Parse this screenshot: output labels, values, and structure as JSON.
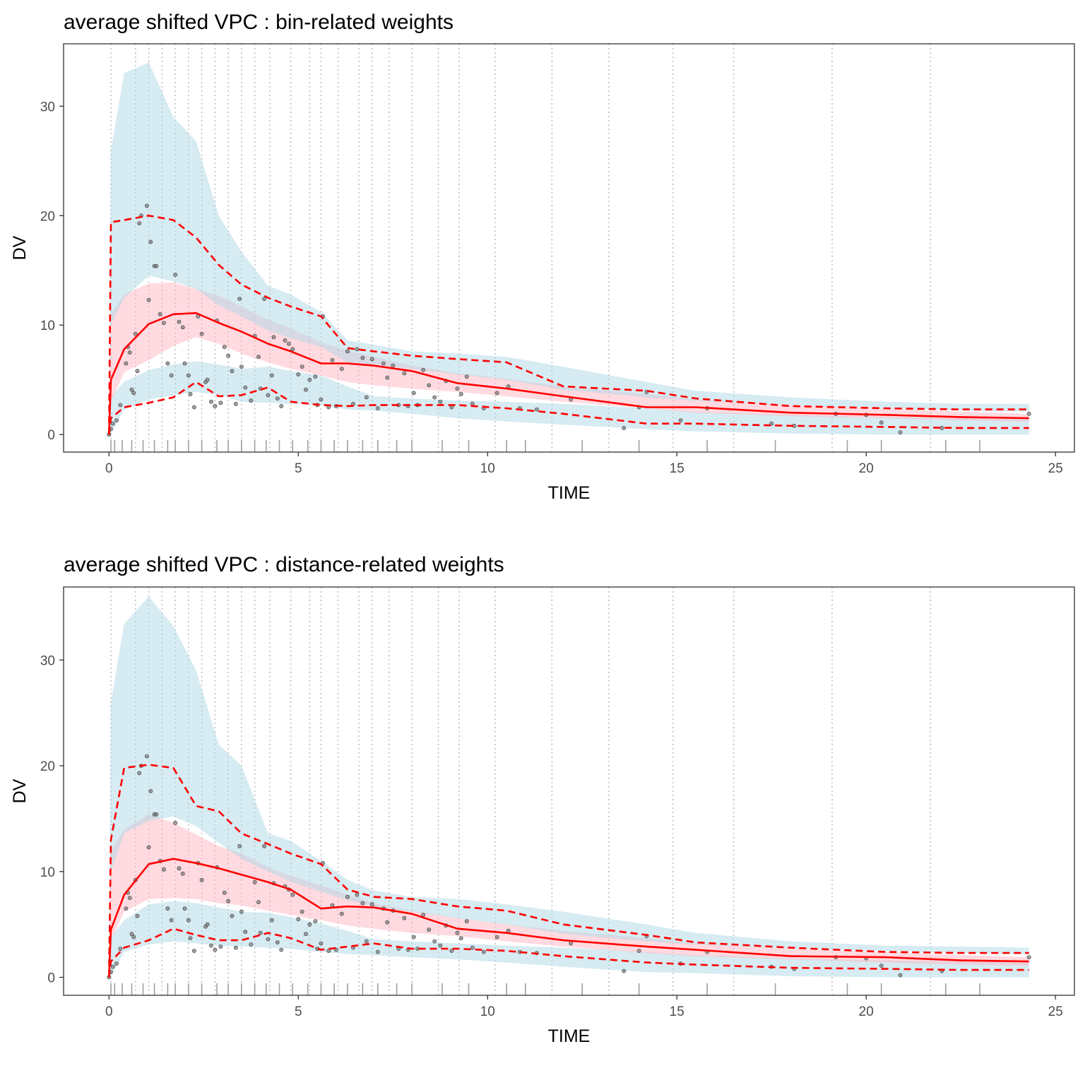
{
  "chart_data": [
    {
      "type": "line",
      "title": "average shifted VPC : bin-related weights",
      "xlabel": "TIME",
      "ylabel": "DV",
      "xlim": [
        -1.2,
        25.5
      ],
      "ylim": [
        -1.6,
        35.7
      ],
      "xticks": [
        0,
        5,
        10,
        15,
        20,
        25
      ],
      "yticks": [
        0,
        10,
        20,
        30
      ],
      "grid": false,
      "legend": "none",
      "colors": {
        "pi_band": "#add8e6",
        "median_band": "#ffb6c1",
        "line": "#ff0000",
        "points": "#808080",
        "bin_lines": "#bdbdbd",
        "rug": "#a0a0a0"
      },
      "bin_boundaries": [
        0.05,
        0.7,
        1.05,
        1.4,
        1.75,
        2.1,
        2.45,
        2.8,
        3.15,
        3.5,
        3.85,
        4.25,
        4.8,
        5.3,
        5.6,
        6.05,
        6.6,
        6.95,
        7.4,
        8.0,
        8.7,
        9.25,
        10.2,
        11.7,
        13.2,
        14.9,
        16.5,
        19.1,
        21.7
      ],
      "rug_x": [
        0.05,
        0.15,
        0.35,
        0.6,
        0.9,
        1.2,
        1.55,
        1.75,
        2.1,
        2.45,
        2.85,
        3.15,
        3.5,
        3.85,
        4.15,
        4.5,
        4.85,
        5.25,
        5.6,
        5.95,
        6.3,
        6.7,
        7.1,
        7.6,
        8.0,
        8.8,
        9.5,
        10.5,
        11.0,
        12.5,
        14.0,
        15.8,
        17.6,
        19.5,
        20.4,
        22.1,
        23.0
      ],
      "x": [
        0,
        0.05,
        0.4,
        1.05,
        1.7,
        2.3,
        2.9,
        3.5,
        4.2,
        4.8,
        5.6,
        6.3,
        7.0,
        8.0,
        9.2,
        10.5,
        12.0,
        14.2,
        15.5,
        18.0,
        20.5,
        22.5,
        24.3
      ],
      "series": [
        {
          "name": "",
          "role": "observed_p05",
          "values": [
            0,
            1.5,
            2.5,
            2.9,
            3.4,
            4.8,
            3.5,
            3.6,
            4.3,
            3.0,
            2.7,
            2.6,
            2.7,
            2.7,
            2.7,
            2.4,
            1.9,
            1.0,
            1.0,
            0.8,
            0.7,
            0.6,
            0.6
          ]
        },
        {
          "name": "",
          "role": "observed_median",
          "values": [
            0,
            5.0,
            7.8,
            10.1,
            11.0,
            11.1,
            10.2,
            9.4,
            8.3,
            7.6,
            6.5,
            6.5,
            6.3,
            5.8,
            4.7,
            4.2,
            3.5,
            2.5,
            2.5,
            2.0,
            1.8,
            1.6,
            1.5
          ]
        },
        {
          "name": "",
          "role": "observed_p95",
          "values": [
            0,
            19.4,
            19.6,
            20.0,
            19.6,
            18.0,
            15.5,
            13.7,
            12.5,
            11.7,
            10.8,
            7.9,
            7.6,
            7.2,
            6.9,
            6.6,
            4.4,
            4.0,
            3.3,
            2.6,
            2.4,
            2.3,
            2.3
          ]
        }
      ],
      "bands": [
        {
          "role": "pi_p05_band",
          "lower": [
            0,
            0.1,
            2.3,
            3.2,
            3.6,
            3.9,
            3.6,
            3.0,
            2.9,
            2.8,
            2.7,
            2.3,
            2.2,
            1.9,
            1.5,
            1.2,
            0.9,
            0.5,
            0.3,
            0.1,
            0,
            0,
            0
          ],
          "upper": [
            0,
            3.5,
            4.8,
            5.9,
            6.4,
            6.7,
            6.4,
            6.0,
            6.2,
            5.8,
            5.4,
            4.4,
            3.5,
            3.3,
            3.1,
            3.0,
            2.8,
            2.4,
            2.1,
            1.8,
            1.6,
            1.5,
            1.5
          ]
        },
        {
          "role": "median_band",
          "lower": [
            0,
            3.0,
            5.7,
            6.8,
            8.1,
            8.9,
            8.3,
            7.4,
            6.6,
            6.0,
            5.4,
            4.8,
            4.5,
            4.2,
            3.9,
            3.5,
            3.0,
            2.4,
            2.0,
            1.7,
            1.5,
            1.3,
            1.2
          ],
          "upper": [
            0,
            11.0,
            12.8,
            13.8,
            13.9,
            13.3,
            12.7,
            11.7,
            10.5,
            9.7,
            8.4,
            7.7,
            7.1,
            6.3,
            5.6,
            5.1,
            4.4,
            3.7,
            3.2,
            2.7,
            2.4,
            2.1,
            1.9
          ]
        },
        {
          "role": "pi_p95_band",
          "lower": [
            0,
            10.0,
            12.5,
            14.5,
            14.0,
            13.3,
            11.8,
            10.8,
            9.5,
            8.8,
            8.0,
            6.6,
            6.4,
            6.0,
            5.5,
            5.0,
            4.1,
            3.4,
            3.1,
            2.7,
            2.4,
            2.2,
            2.1
          ],
          "upper": [
            0,
            26.0,
            33.0,
            34.0,
            29.0,
            26.8,
            20.0,
            16.7,
            13.6,
            12.8,
            11.2,
            8.6,
            8.2,
            7.6,
            7.4,
            7.1,
            6.2,
            4.8,
            4.0,
            3.4,
            3.0,
            2.8,
            2.8
          ]
        }
      ],
      "points": {
        "x": [
          0,
          0.05,
          0.1,
          0.2,
          0.3,
          0.45,
          0.5,
          0.55,
          0.6,
          0.65,
          0.7,
          0.75,
          0.8,
          0.85,
          1.0,
          1.05,
          1.1,
          1.2,
          1.25,
          1.35,
          1.45,
          1.55,
          1.65,
          1.75,
          1.85,
          1.95,
          2.0,
          2.1,
          2.15,
          2.25,
          2.35,
          2.45,
          2.55,
          2.6,
          2.7,
          2.8,
          2.85,
          2.95,
          3.05,
          3.15,
          3.25,
          3.35,
          3.45,
          3.5,
          3.6,
          3.75,
          3.85,
          3.95,
          4.0,
          4.1,
          4.2,
          4.3,
          4.35,
          4.45,
          4.55,
          4.65,
          4.75,
          4.85,
          5.0,
          5.1,
          5.2,
          5.3,
          5.45,
          5.5,
          5.6,
          5.65,
          5.8,
          5.9,
          6.0,
          6.15,
          6.3,
          6.45,
          6.55,
          6.7,
          6.8,
          6.95,
          7.1,
          7.25,
          7.35,
          7.5,
          7.65,
          7.8,
          7.9,
          8.05,
          8.15,
          8.3,
          8.45,
          8.6,
          8.75,
          8.9,
          9.05,
          9.2,
          9.3,
          9.45,
          9.6,
          9.9,
          10.25,
          10.55,
          10.85,
          11.3,
          12.2,
          13.6,
          14.0,
          14.2,
          15.1,
          15.8,
          17.5,
          18.1,
          19.2,
          20.0,
          20.4,
          20.9,
          22.0,
          24.3
        ],
        "values": [
          0,
          0.5,
          1.0,
          1.3,
          2.7,
          6.5,
          8.0,
          7.5,
          4.1,
          3.8,
          9.2,
          5.8,
          19.3,
          20.0,
          20.9,
          12.3,
          17.6,
          15.4,
          15.4,
          11.0,
          10.2,
          6.5,
          5.4,
          14.6,
          10.3,
          9.8,
          6.5,
          5.4,
          3.7,
          2.5,
          10.8,
          9.2,
          4.8,
          5.0,
          3.0,
          2.6,
          10.4,
          2.9,
          8.0,
          7.2,
          5.8,
          2.8,
          12.4,
          6.2,
          4.3,
          3.1,
          9.0,
          7.1,
          4.2,
          12.4,
          3.6,
          5.4,
          8.9,
          3.3,
          2.6,
          8.6,
          8.3,
          7.8,
          5.5,
          6.2,
          4.1,
          5.0,
          5.3,
          2.7,
          3.2,
          10.8,
          2.5,
          6.8,
          2.6,
          6.0,
          7.6,
          2.8,
          7.8,
          7.0,
          3.4,
          6.9,
          2.4,
          6.5,
          5.2,
          6.3,
          2.7,
          5.6,
          2.6,
          3.8,
          2.7,
          5.9,
          4.5,
          3.4,
          3.0,
          4.9,
          2.5,
          4.2,
          3.7,
          5.3,
          2.8,
          2.4,
          3.8,
          4.4,
          2.4,
          2.3,
          3.2,
          0.6,
          2.5,
          3.9,
          1.3,
          2.4,
          1.0,
          0.8,
          1.9,
          1.8,
          1.1,
          0.2,
          0.6,
          1.9
        ]
      }
    },
    {
      "type": "line",
      "title": "average shifted VPC : distance-related weights",
      "xlabel": "TIME",
      "ylabel": "DV",
      "xlim": [
        -1.2,
        25.5
      ],
      "ylim": [
        -1.7,
        36.9
      ],
      "xticks": [
        0,
        5,
        10,
        15,
        20,
        25
      ],
      "yticks": [
        0,
        10,
        20,
        30
      ],
      "grid": false,
      "legend": "none",
      "colors": {
        "pi_band": "#add8e6",
        "median_band": "#ffb6c1",
        "line": "#ff0000",
        "points": "#808080",
        "bin_lines": "#bdbdbd",
        "rug": "#a0a0a0"
      },
      "bin_boundaries": [
        0.05,
        0.7,
        1.05,
        1.4,
        1.75,
        2.1,
        2.45,
        2.8,
        3.15,
        3.5,
        3.85,
        4.25,
        4.8,
        5.3,
        5.6,
        6.05,
        6.6,
        6.95,
        7.4,
        8.0,
        8.7,
        9.25,
        10.2,
        11.7,
        13.2,
        14.9,
        16.5,
        19.1,
        21.7
      ],
      "rug_x": [
        0.05,
        0.15,
        0.35,
        0.6,
        0.9,
        1.2,
        1.55,
        1.75,
        2.1,
        2.45,
        2.85,
        3.15,
        3.5,
        3.85,
        4.15,
        4.5,
        4.85,
        5.25,
        5.6,
        5.95,
        6.3,
        6.7,
        7.1,
        7.6,
        8.0,
        8.8,
        9.5,
        10.5,
        11.0,
        12.5,
        14.0,
        15.8,
        17.6,
        19.5,
        20.4,
        22.1,
        23.0
      ],
      "x": [
        0,
        0.05,
        0.4,
        1.05,
        1.7,
        2.3,
        2.9,
        3.5,
        4.2,
        4.8,
        5.6,
        6.3,
        7.0,
        8.0,
        9.2,
        10.5,
        12.0,
        14.2,
        15.5,
        18.0,
        20.5,
        22.5,
        24.3
      ],
      "series": [
        {
          "name": "",
          "role": "observed_p05",
          "values": [
            0,
            1.5,
            2.8,
            3.5,
            4.6,
            4.0,
            3.5,
            3.5,
            4.2,
            3.7,
            2.6,
            2.9,
            3.2,
            2.7,
            2.7,
            2.5,
            2.0,
            1.4,
            1.2,
            0.9,
            0.8,
            0.7,
            0.7
          ]
        },
        {
          "name": "",
          "role": "observed_median",
          "values": [
            0,
            4.5,
            7.8,
            10.7,
            11.2,
            10.8,
            10.3,
            9.7,
            9.0,
            8.3,
            6.5,
            6.7,
            6.6,
            6.0,
            4.6,
            4.2,
            3.5,
            2.9,
            2.6,
            2.0,
            1.9,
            1.6,
            1.5
          ]
        },
        {
          "name": "",
          "role": "observed_p95",
          "values": [
            0,
            13.0,
            19.8,
            20.1,
            19.8,
            16.2,
            15.7,
            13.6,
            12.6,
            11.7,
            10.7,
            8.3,
            7.6,
            7.4,
            6.7,
            6.3,
            5.0,
            4.0,
            3.3,
            2.8,
            2.4,
            2.3,
            2.3
          ]
        }
      ],
      "bands": [
        {
          "role": "pi_p05_band",
          "lower": [
            0,
            0.1,
            2.4,
            3.1,
            3.4,
            3.2,
            3.0,
            2.9,
            2.8,
            2.7,
            2.4,
            2.2,
            2.1,
            1.9,
            1.7,
            1.4,
            1.0,
            0.5,
            0.4,
            0.1,
            0,
            0,
            0
          ],
          "upper": [
            0,
            3.8,
            5.4,
            6.9,
            7.2,
            7.0,
            6.6,
            6.2,
            6.1,
            5.7,
            5.1,
            4.4,
            3.6,
            3.4,
            3.2,
            3.0,
            2.8,
            2.4,
            2.1,
            1.8,
            1.6,
            1.5,
            1.5
          ]
        },
        {
          "role": "median_band",
          "lower": [
            0,
            3.5,
            6.2,
            7.4,
            7.5,
            7.4,
            7.0,
            6.8,
            6.3,
            5.9,
            5.4,
            4.9,
            4.6,
            4.2,
            3.9,
            3.4,
            2.9,
            2.3,
            2.0,
            1.7,
            1.4,
            1.2,
            1.1
          ],
          "upper": [
            0,
            12.0,
            14.0,
            15.4,
            14.6,
            13.5,
            12.4,
            11.7,
            10.4,
            9.6,
            8.7,
            7.8,
            7.0,
            6.3,
            5.6,
            5.0,
            4.4,
            3.7,
            3.2,
            2.7,
            2.4,
            2.1,
            1.9
          ]
        },
        {
          "role": "pi_p95_band",
          "lower": [
            0,
            10.0,
            13.6,
            14.8,
            15.2,
            14.3,
            12.7,
            11.2,
            10.0,
            9.0,
            8.1,
            7.3,
            6.7,
            6.2,
            5.6,
            5.0,
            4.1,
            3.4,
            3.1,
            2.7,
            2.5,
            2.3,
            2.2
          ],
          "upper": [
            0,
            26.0,
            33.4,
            36.0,
            33.2,
            29.0,
            22.0,
            20.0,
            13.6,
            12.9,
            11.0,
            9.2,
            8.2,
            7.6,
            7.4,
            6.9,
            6.2,
            5.0,
            4.2,
            3.4,
            3.0,
            2.9,
            2.8
          ]
        }
      ],
      "points": {
        "x": [
          0,
          0.05,
          0.1,
          0.2,
          0.3,
          0.45,
          0.5,
          0.55,
          0.6,
          0.65,
          0.7,
          0.75,
          0.8,
          0.85,
          1.0,
          1.05,
          1.1,
          1.2,
          1.25,
          1.35,
          1.45,
          1.55,
          1.65,
          1.75,
          1.85,
          1.95,
          2.0,
          2.1,
          2.15,
          2.25,
          2.35,
          2.45,
          2.55,
          2.6,
          2.7,
          2.8,
          2.85,
          2.95,
          3.05,
          3.15,
          3.25,
          3.35,
          3.45,
          3.5,
          3.6,
          3.75,
          3.85,
          3.95,
          4.0,
          4.1,
          4.2,
          4.3,
          4.35,
          4.45,
          4.55,
          4.65,
          4.75,
          4.85,
          5.0,
          5.1,
          5.2,
          5.3,
          5.45,
          5.5,
          5.6,
          5.65,
          5.8,
          5.9,
          6.0,
          6.15,
          6.3,
          6.45,
          6.55,
          6.7,
          6.8,
          6.95,
          7.1,
          7.25,
          7.35,
          7.5,
          7.65,
          7.8,
          7.9,
          8.05,
          8.15,
          8.3,
          8.45,
          8.6,
          8.75,
          8.9,
          9.05,
          9.2,
          9.3,
          9.45,
          9.6,
          9.9,
          10.25,
          10.55,
          10.85,
          11.3,
          12.2,
          13.6,
          14.0,
          14.2,
          15.1,
          15.8,
          17.5,
          18.1,
          19.2,
          20.0,
          20.4,
          20.9,
          22.0,
          24.3
        ],
        "values": [
          0,
          0.5,
          1.0,
          1.3,
          2.7,
          6.5,
          8.0,
          7.5,
          4.1,
          3.8,
          9.2,
          5.8,
          19.3,
          20.0,
          20.9,
          12.3,
          17.6,
          15.4,
          15.4,
          11.0,
          10.2,
          6.5,
          5.4,
          14.6,
          10.3,
          9.8,
          6.5,
          5.4,
          3.7,
          2.5,
          10.8,
          9.2,
          4.8,
          5.0,
          3.0,
          2.6,
          10.4,
          2.9,
          8.0,
          7.2,
          5.8,
          2.8,
          12.4,
          6.2,
          4.3,
          3.1,
          9.0,
          7.1,
          4.2,
          12.4,
          3.6,
          5.4,
          8.9,
          3.3,
          2.6,
          8.6,
          8.3,
          7.8,
          5.5,
          6.2,
          4.1,
          5.0,
          5.3,
          2.7,
          3.2,
          10.8,
          2.5,
          6.8,
          2.6,
          6.0,
          7.6,
          2.8,
          7.8,
          7.0,
          3.4,
          6.9,
          2.4,
          6.5,
          5.2,
          6.3,
          2.7,
          5.6,
          2.6,
          3.8,
          2.7,
          5.9,
          4.5,
          3.4,
          3.0,
          4.9,
          2.5,
          4.2,
          3.7,
          5.3,
          2.8,
          2.4,
          3.8,
          4.4,
          2.4,
          2.3,
          3.2,
          0.6,
          2.5,
          3.9,
          1.3,
          2.4,
          1.0,
          0.8,
          1.9,
          1.8,
          1.1,
          0.2,
          0.6,
          1.9
        ]
      }
    }
  ]
}
